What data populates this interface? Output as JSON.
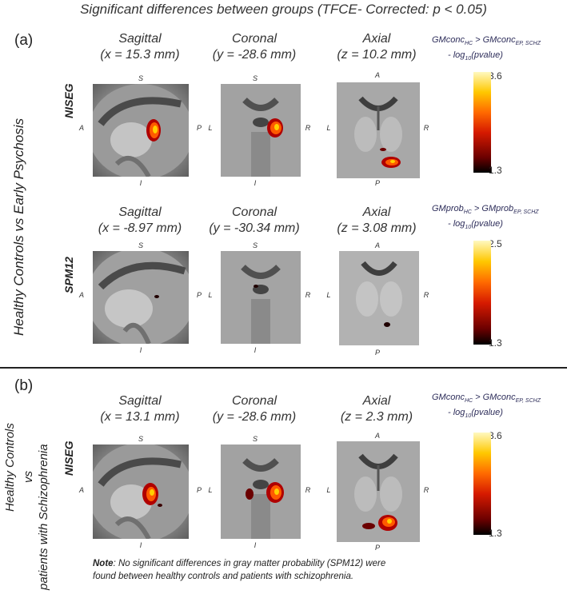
{
  "title": "Significant differences between groups (TFCE- Corrected: p < 0.05)",
  "panel_a": {
    "label": "(a)",
    "group_label": "Healthy Controls vs Early Psychosis",
    "rows": [
      {
        "method": "NISEG",
        "views": [
          {
            "name": "Sagittal",
            "coord": "(x = 15.3 mm)",
            "top": "S",
            "bottom": "I",
            "left": "A",
            "right": "P"
          },
          {
            "name": "Coronal",
            "coord": "(y = -28.6 mm)",
            "top": "S",
            "bottom": "I",
            "left": "L",
            "right": "R"
          },
          {
            "name": "Axial",
            "coord": "(z = 10.2 mm)",
            "top": "A",
            "bottom": "P",
            "left": "L",
            "right": "R"
          }
        ],
        "colorbar": {
          "label_main": "GMconc",
          "sub_hc": "HC",
          "gt": " > GMconc",
          "sub_grp": "EP, SCHZ",
          "label_line2": "- log",
          "sub_10": "10",
          "label_line2_end": "(pvalue)",
          "max": "3.6",
          "min": "1.3"
        }
      },
      {
        "method": "SPM12",
        "views": [
          {
            "name": "Sagittal",
            "coord": "(x = -8.97 mm)",
            "top": "S",
            "bottom": "I",
            "left": "A",
            "right": "P"
          },
          {
            "name": "Coronal",
            "coord": "(y = -30.34 mm)",
            "top": "S",
            "bottom": "I",
            "left": "L",
            "right": "R"
          },
          {
            "name": "Axial",
            "coord": "(z = 3.08 mm)",
            "top": "A",
            "bottom": "P",
            "left": "L",
            "right": "R"
          }
        ],
        "colorbar": {
          "label_main": "GMprob",
          "sub_hc": "HC",
          "gt": " > GMprob",
          "sub_grp": "EP, SCHZ",
          "label_line2": "- log",
          "sub_10": "10",
          "label_line2_end": "(pvalue)",
          "max": "2.5",
          "min": "1.3"
        }
      }
    ]
  },
  "panel_b": {
    "label": "(b)",
    "group_label_1": "Healthy Controls",
    "group_label_2": "vs",
    "group_label_3": "patients with Schizophrenia",
    "rows": [
      {
        "method": "NISEG",
        "views": [
          {
            "name": "Sagittal",
            "coord": "(x = 13.1 mm)",
            "top": "S",
            "bottom": "I",
            "left": "A",
            "right": "P"
          },
          {
            "name": "Coronal",
            "coord": "(y = -28.6 mm)",
            "top": "S",
            "bottom": "I",
            "left": "L",
            "right": "R"
          },
          {
            "name": "Axial",
            "coord": "(z = 2.3 mm)",
            "top": "A",
            "bottom": "P",
            "left": "L",
            "right": "R"
          }
        ],
        "colorbar": {
          "label_main": "GMconc",
          "sub_hc": "HC",
          "gt": " > GMconc",
          "sub_grp": "EP, SCHZ",
          "label_line2": "- log",
          "sub_10": "10",
          "label_line2_end": "(pvalue)",
          "max": "3.6",
          "min": "1.3"
        }
      }
    ],
    "note_bold": "Note",
    "note_text": ": No significant differences in gray matter probability (SPM12) were",
    "note_text2": "found between healthy controls and patients with schizophrenia."
  }
}
